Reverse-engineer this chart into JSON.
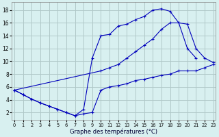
{
  "background_color": "#d8f0f0",
  "grid_color": "#b0c8c8",
  "line_color": "#0000bb",
  "xlabel": "Graphe des températures (°C)",
  "x_ticks": [
    0,
    1,
    2,
    3,
    4,
    5,
    6,
    7,
    8,
    9,
    10,
    11,
    12,
    13,
    14,
    15,
    16,
    17,
    18,
    19,
    20,
    21,
    22,
    23
  ],
  "y_ticks": [
    2,
    4,
    6,
    8,
    10,
    12,
    14,
    16,
    18
  ],
  "xlim": [
    -0.3,
    23.3
  ],
  "ylim": [
    0.8,
    19.2
  ],
  "curves": [
    {
      "x": [
        0,
        1,
        2,
        3,
        4,
        5,
        6,
        7,
        8,
        9,
        10,
        11,
        12,
        13,
        14,
        15,
        16,
        17,
        18,
        19,
        20,
        21
      ],
      "y": [
        5.5,
        4.8,
        4.1,
        3.5,
        3.0,
        2.5,
        2.0,
        1.5,
        2.5,
        10.5,
        14.0,
        14.2,
        15.5,
        15.8,
        16.5,
        17.0,
        18.0,
        18.2,
        17.8,
        16.0,
        12.0,
        10.5
      ]
    },
    {
      "x": [
        0,
        10,
        11,
        12,
        13,
        14,
        15,
        16,
        17,
        18,
        19,
        20,
        21,
        22,
        23
      ],
      "y": [
        5.5,
        8.5,
        9.0,
        9.5,
        10.5,
        11.5,
        12.5,
        13.5,
        15.0,
        16.0,
        16.0,
        15.8,
        12.0,
        10.5,
        9.8
      ]
    },
    {
      "x": [
        0,
        1,
        2,
        3,
        4,
        5,
        6,
        7,
        8,
        9,
        10,
        11,
        12,
        13,
        14,
        15,
        16,
        17,
        18,
        19,
        20,
        21,
        22,
        23
      ],
      "y": [
        5.5,
        4.8,
        4.1,
        3.5,
        3.0,
        2.5,
        2.0,
        1.5,
        1.8,
        2.0,
        5.5,
        6.0,
        6.2,
        6.5,
        7.0,
        7.2,
        7.5,
        7.8,
        8.0,
        8.5,
        8.5,
        8.5,
        9.0,
        9.5
      ]
    }
  ]
}
